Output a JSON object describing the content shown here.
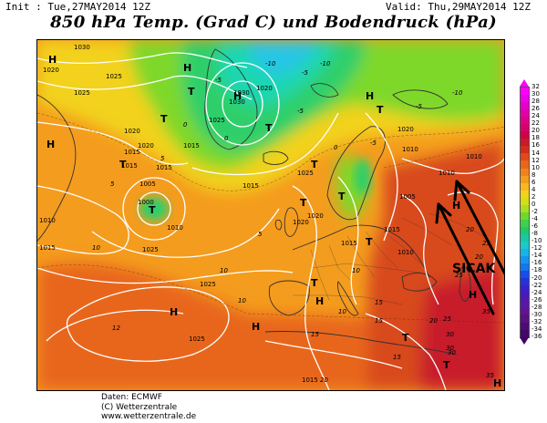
{
  "header": {
    "init": "Init : Tue,27MAY2014 12Z",
    "valid": "Valid: Thu,29MAY2014 12Z",
    "title": "850 hPa Temp. (Grad C) und Bodendruck (hPa)"
  },
  "map": {
    "annotation": "SICAK",
    "colors": {
      "hot": "#d84a1e",
      "warm": "#f08a1c",
      "mild": "#f7a823",
      "yellow": "#f2d21a",
      "green": "#7ed82a",
      "cold_green": "#2ecf6a",
      "teal": "#1fd7b0",
      "cyan": "#27c6e6",
      "isobar": "#ffffff",
      "magenta": "#e0198c",
      "land_line": "#333333"
    },
    "highs": [
      "H",
      "H",
      "H",
      "H",
      "H",
      "H",
      "H",
      "H",
      "H",
      "H",
      "H"
    ],
    "lows": [
      "T",
      "T",
      "T",
      "T",
      "T",
      "T",
      "T",
      "T",
      "T",
      "T",
      "T",
      "T",
      "T"
    ],
    "isobar_labels": [
      "1030",
      "1020",
      "1025",
      "1030",
      "1025",
      "1020",
      "1030",
      "1025",
      "1020",
      "1020",
      "1015",
      "1015",
      "1015",
      "1005",
      "1000",
      "1010",
      "1010",
      "1015",
      "1015",
      "1020",
      "1025",
      "1020",
      "1010",
      "1005",
      "1015",
      "1025",
      "1020",
      "1015",
      "1010",
      "1015",
      "1025",
      "1025",
      "1015",
      "1010",
      "1010"
    ],
    "temperature_labels": [
      "-10",
      "-5",
      "-10",
      "-5",
      "0",
      "5",
      "10",
      "15",
      "20",
      "25",
      "30",
      "35",
      "-5",
      "0",
      "5",
      "10",
      "15",
      "20",
      "-5",
      "0",
      "5",
      "10",
      "15",
      "20",
      "25",
      "30",
      "35",
      "-5",
      "-10",
      "12",
      "10",
      "10",
      "15",
      "20",
      "25",
      "30"
    ]
  },
  "colorbar": {
    "labels": [
      "32",
      "30",
      "28",
      "26",
      "24",
      "22",
      "20",
      "18",
      "16",
      "14",
      "12",
      "10",
      "8",
      "6",
      "4",
      "2",
      "0",
      "-2",
      "-4",
      "-6",
      "-8",
      "-10",
      "-12",
      "-14",
      "-16",
      "-18",
      "-20",
      "-22",
      "-24",
      "-26",
      "-28",
      "-30",
      "-32",
      "-34",
      "-36"
    ],
    "colors": [
      "#ff00ff",
      "#f000e8",
      "#e400cc",
      "#e200a8",
      "#dd0088",
      "#d8006a",
      "#d0004a",
      "#c81a2a",
      "#d42c1c",
      "#e04a1a",
      "#e8661a",
      "#f0821c",
      "#f49c1e",
      "#f7b820",
      "#f2d21a",
      "#d7dd18",
      "#a7e020",
      "#6fd82a",
      "#3ed24a",
      "#20c870",
      "#18c8a0",
      "#18cac8",
      "#14b4e8",
      "#1496f0",
      "#1476f0",
      "#1450e8",
      "#2432d8",
      "#3a20c8",
      "#4c18b8",
      "#5a18a8",
      "#601494",
      "#5a1080",
      "#4c0c70",
      "#44086a"
    ]
  },
  "credits": {
    "line1": "Daten: ECMWF",
    "line2": "(C) Wetterzentrale",
    "line3": "www.wetterzentrale.de"
  }
}
